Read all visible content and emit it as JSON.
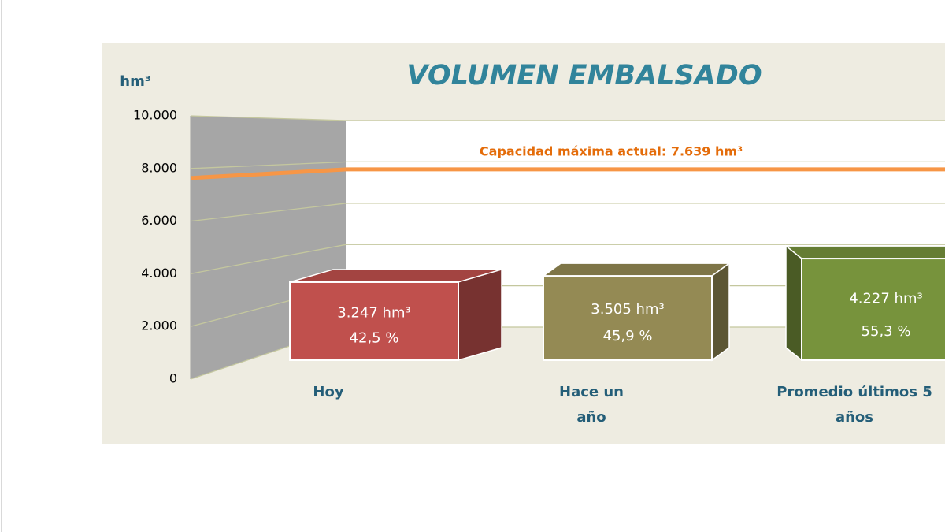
{
  "chart_data": {
    "type": "bar",
    "title": "VOLUMEN EMBALSADO",
    "y_label": "hm³",
    "categories": [
      "Hoy",
      "Hace un año",
      "Promedio últimos 5 años"
    ],
    "values": [
      3247,
      3505,
      4227
    ],
    "value_labels": [
      "3.247 hm³",
      "3.505 hm³",
      "4.227 hm³"
    ],
    "percentages": [
      42.5,
      45.9,
      55.3
    ],
    "percentage_labels": [
      "42,5 %",
      "45,9 %",
      "55,3 %"
    ],
    "colors": [
      "#c0504d",
      "#948a54",
      "#77933c"
    ],
    "ylim": [
      0,
      10000
    ],
    "yticks": [
      0,
      {
        "value": 2000,
        "label": "2.000"
      },
      {
        "value": 4000,
        "label": "4.000"
      },
      {
        "value": 6000,
        "label": "6.000"
      },
      {
        "value": 8000,
        "label": "8.000"
      },
      {
        "value": 10000,
        "label": "10.000"
      }
    ],
    "grid": true,
    "reference_line": {
      "value": 7639,
      "label": "Capacidad máxima actual: 7.639 hm³",
      "color": "#f79646"
    }
  }
}
